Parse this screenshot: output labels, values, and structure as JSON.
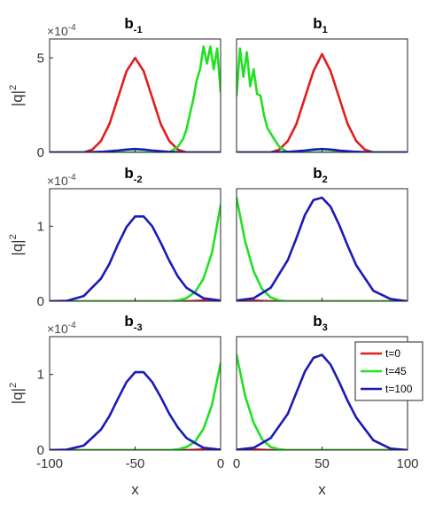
{
  "colors": {
    "red": "#e11d1d",
    "green": "#22e022",
    "blue": "#1a1ab8",
    "axis": "#262626"
  },
  "figure": {
    "exponent_base": "×10",
    "exponent_power": "-4",
    "ylabel_main": "|q|",
    "ylabel_power": "2",
    "xlabel": "x"
  },
  "legend": {
    "placement": "inside-right, bottom-right panel",
    "entries": [
      "t=0",
      "t=45",
      "t=100"
    ]
  },
  "chart_data": [
    {
      "type": "line",
      "title_main": "b",
      "title_sub": "-1",
      "xlim": [
        -100,
        0
      ],
      "ylim": [
        0,
        6
      ],
      "yticks": [
        0,
        5
      ],
      "series": [
        {
          "name": "t=0",
          "color": "#e11d1d",
          "x": [
            -100,
            -80,
            -75,
            -70,
            -65,
            -60,
            -55,
            -50,
            -45,
            -40,
            -35,
            -30,
            -25,
            -20,
            -10,
            0
          ],
          "y": [
            0,
            0,
            0.15,
            0.6,
            1.5,
            2.9,
            4.3,
            5.0,
            4.3,
            2.9,
            1.5,
            0.6,
            0.15,
            0,
            0,
            0
          ]
        },
        {
          "name": "t=45",
          "color": "#22e022",
          "x": [
            -100,
            -30,
            -25,
            -22,
            -20,
            -18,
            -16,
            -14,
            -12,
            -10,
            -8,
            -6,
            -4,
            -2,
            0
          ],
          "y": [
            0,
            0,
            0.3,
            0.7,
            1.2,
            2.0,
            2.8,
            3.8,
            4.4,
            5.6,
            4.7,
            5.6,
            4.4,
            5.5,
            3.2
          ]
        },
        {
          "name": "t=100",
          "color": "#1a1ab8",
          "x": [
            -100,
            -80,
            -70,
            -60,
            -55,
            -50,
            -45,
            -40,
            -30,
            -20,
            -10,
            0
          ],
          "y": [
            0,
            0,
            0.03,
            0.1,
            0.15,
            0.18,
            0.15,
            0.1,
            0.03,
            0,
            0,
            0
          ]
        }
      ]
    },
    {
      "type": "line",
      "title_main": "b",
      "title_sub": "1",
      "xlim": [
        0,
        100
      ],
      "ylim": [
        0,
        6
      ],
      "yticks": [],
      "series": [
        {
          "name": "t=0",
          "color": "#e11d1d",
          "x": [
            0,
            20,
            25,
            30,
            35,
            40,
            45,
            50,
            55,
            60,
            65,
            70,
            75,
            80,
            90,
            100
          ],
          "y": [
            0,
            0,
            0.15,
            0.6,
            1.5,
            2.9,
            4.3,
            5.2,
            4.3,
            2.9,
            1.5,
            0.6,
            0.15,
            0,
            0,
            0
          ]
        },
        {
          "name": "t=45",
          "color": "#22e022",
          "x": [
            0,
            2,
            4,
            6,
            8,
            10,
            12,
            14,
            16,
            18,
            20,
            22,
            25,
            30,
            100
          ],
          "y": [
            3.0,
            5.5,
            4.0,
            5.3,
            3.5,
            4.4,
            3.1,
            3.0,
            2.0,
            1.3,
            1.0,
            0.7,
            0.3,
            0,
            0
          ]
        },
        {
          "name": "t=100",
          "color": "#1a1ab8",
          "x": [
            0,
            20,
            30,
            40,
            45,
            50,
            55,
            60,
            70,
            80,
            100
          ],
          "y": [
            0,
            0,
            0.03,
            0.1,
            0.15,
            0.18,
            0.15,
            0.1,
            0.03,
            0,
            0
          ]
        }
      ]
    },
    {
      "type": "line",
      "title_main": "b",
      "title_sub": "-2",
      "xlim": [
        -100,
        0
      ],
      "ylim": [
        0,
        1.5
      ],
      "yticks": [
        0,
        1
      ],
      "series": [
        {
          "name": "t=0",
          "color": "#e11d1d",
          "x": [
            -100,
            -20,
            -15,
            -10,
            -5,
            0
          ],
          "y": [
            0,
            0,
            0.004,
            0.01,
            0.004,
            0
          ]
        },
        {
          "name": "t=45",
          "color": "#22e022",
          "x": [
            -100,
            -30,
            -25,
            -20,
            -15,
            -10,
            -5,
            0
          ],
          "y": [
            0,
            0,
            0.01,
            0.04,
            0.12,
            0.3,
            0.65,
            1.28
          ]
        },
        {
          "name": "t=100",
          "color": "#1a1ab8",
          "x": [
            -100,
            -90,
            -80,
            -70,
            -65,
            -60,
            -55,
            -50,
            -45,
            -40,
            -35,
            -30,
            -25,
            -20,
            -10,
            0
          ],
          "y": [
            0,
            0.005,
            0.07,
            0.3,
            0.5,
            0.76,
            0.99,
            1.13,
            1.13,
            1.0,
            0.78,
            0.54,
            0.33,
            0.18,
            0.04,
            0.01
          ]
        }
      ]
    },
    {
      "type": "line",
      "title_main": "b",
      "title_sub": "2",
      "xlim": [
        0,
        100
      ],
      "ylim": [
        0,
        1.5
      ],
      "yticks": [],
      "series": [
        {
          "name": "t=0",
          "color": "#e11d1d",
          "x": [
            0,
            5,
            10,
            15,
            20,
            100
          ],
          "y": [
            0,
            0.004,
            0.01,
            0.004,
            0,
            0
          ]
        },
        {
          "name": "t=45",
          "color": "#22e022",
          "x": [
            0,
            5,
            10,
            15,
            20,
            25,
            30,
            100
          ],
          "y": [
            1.38,
            0.8,
            0.4,
            0.16,
            0.05,
            0.01,
            0,
            0
          ]
        },
        {
          "name": "t=100",
          "color": "#1a1ab8",
          "x": [
            0,
            10,
            20,
            30,
            35,
            40,
            45,
            50,
            55,
            60,
            65,
            70,
            80,
            90,
            100
          ],
          "y": [
            0.01,
            0.04,
            0.18,
            0.55,
            0.84,
            1.15,
            1.35,
            1.38,
            1.26,
            1.02,
            0.74,
            0.48,
            0.14,
            0.03,
            0
          ]
        }
      ]
    },
    {
      "type": "line",
      "title_main": "b",
      "title_sub": "-3",
      "xlim": [
        -100,
        0
      ],
      "ylim": [
        0,
        1.5
      ],
      "yticks": [
        0,
        1
      ],
      "series": [
        {
          "name": "t=0",
          "color": "#e11d1d",
          "x": [
            -100,
            -20,
            -15,
            -10,
            -5,
            0
          ],
          "y": [
            0,
            0,
            0.004,
            0.01,
            0.004,
            0
          ]
        },
        {
          "name": "t=45",
          "color": "#22e022",
          "x": [
            -100,
            -30,
            -25,
            -20,
            -15,
            -10,
            -5,
            0
          ],
          "y": [
            0,
            0,
            0.01,
            0.04,
            0.11,
            0.28,
            0.6,
            1.15
          ]
        },
        {
          "name": "t=100",
          "color": "#1a1ab8",
          "x": [
            -100,
            -90,
            -80,
            -70,
            -65,
            -60,
            -55,
            -50,
            -45,
            -40,
            -35,
            -30,
            -25,
            -20,
            -10,
            0
          ],
          "y": [
            0,
            0.005,
            0.06,
            0.27,
            0.45,
            0.68,
            0.9,
            1.03,
            1.03,
            0.9,
            0.7,
            0.48,
            0.3,
            0.16,
            0.03,
            0.005
          ]
        }
      ]
    },
    {
      "type": "line",
      "title_main": "b",
      "title_sub": "3",
      "xlim": [
        0,
        100
      ],
      "ylim": [
        0,
        1.5
      ],
      "yticks": [],
      "series": [
        {
          "name": "t=0",
          "color": "#e11d1d",
          "x": [
            0,
            5,
            10,
            15,
            20,
            100
          ],
          "y": [
            0,
            0.004,
            0.01,
            0.004,
            0,
            0
          ]
        },
        {
          "name": "t=45",
          "color": "#22e022",
          "x": [
            0,
            5,
            10,
            15,
            20,
            25,
            30,
            100
          ],
          "y": [
            1.26,
            0.72,
            0.36,
            0.14,
            0.04,
            0.01,
            0,
            0
          ]
        },
        {
          "name": "t=100",
          "color": "#1a1ab8",
          "x": [
            0,
            10,
            20,
            30,
            35,
            40,
            45,
            50,
            55,
            60,
            65,
            70,
            80,
            90,
            100
          ],
          "y": [
            0.005,
            0.03,
            0.16,
            0.48,
            0.76,
            1.04,
            1.22,
            1.26,
            1.13,
            0.9,
            0.65,
            0.43,
            0.13,
            0.02,
            0
          ]
        }
      ]
    }
  ],
  "x_tick_labels": {
    "left": [
      "-100",
      "-50",
      "0"
    ],
    "right": [
      "0",
      "50",
      "100"
    ]
  }
}
